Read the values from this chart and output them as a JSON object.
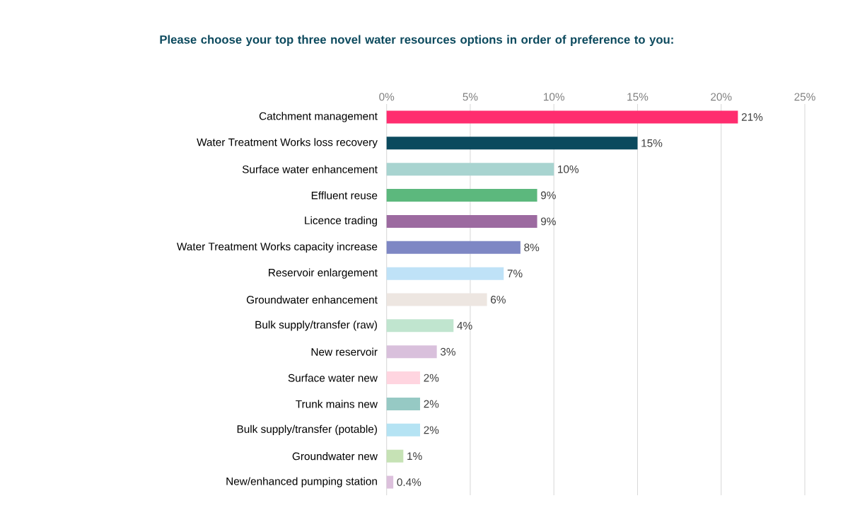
{
  "chart_data": {
    "type": "bar",
    "orientation": "horizontal",
    "title": "Please choose your top three novel water resources options in order of preference to you:",
    "categories": [
      "Catchment management",
      "Water Treatment Works loss recovery",
      "Surface water enhancement",
      "Effluent reuse",
      "Licence trading",
      "Water Treatment Works capacity increase",
      "Reservoir enlargement",
      "Groundwater enhancement",
      "Bulk supply/transfer (raw)",
      "New reservoir",
      "Surface water new",
      "Trunk mains new",
      "Bulk supply/transfer (potable)",
      "Groundwater new",
      "New/enhanced pumping station"
    ],
    "values": [
      21,
      15,
      10,
      9,
      9,
      8,
      7,
      6,
      4,
      3,
      2,
      2,
      2,
      1,
      0.4
    ],
    "value_labels": [
      "21%",
      "15%",
      "10%",
      "9%",
      "9%",
      "8%",
      "7%",
      "6%",
      "4%",
      "3%",
      "2%",
      "2%",
      "2%",
      "1%",
      "0.4%"
    ],
    "colors": [
      "#ff2d6f",
      "#0b4a5e",
      "#a8d4d0",
      "#5cb87d",
      "#9c6aa0",
      "#7e87c4",
      "#bfe2f7",
      "#ede6e1",
      "#c0e5cf",
      "#d9c0dc",
      "#ffd5e0",
      "#96c9c4",
      "#b5e3f3",
      "#c6e2b5",
      "#dcc0dc"
    ],
    "xlim": [
      0,
      25
    ],
    "xticks": [
      {
        "value": 0,
        "label": "0%"
      },
      {
        "value": 5,
        "label": "5%"
      },
      {
        "value": 10,
        "label": "10%"
      },
      {
        "value": 15,
        "label": "15%"
      },
      {
        "value": 20,
        "label": "20%"
      },
      {
        "value": 25,
        "label": "25%"
      }
    ],
    "grid": "x"
  }
}
